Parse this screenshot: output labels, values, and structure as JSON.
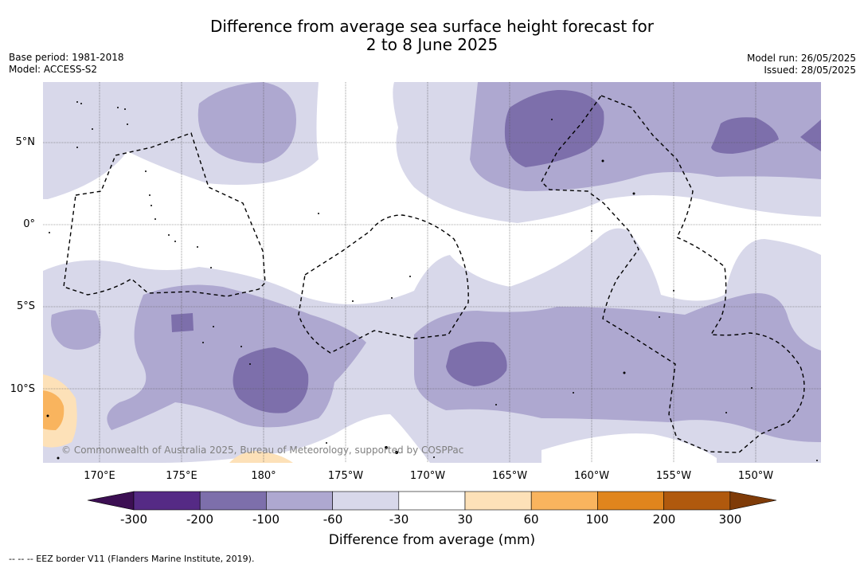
{
  "title": {
    "line1": "Difference from average sea surface height forecast for",
    "line2": "2 to 8 June 2025"
  },
  "meta": {
    "base_period": "Base period: 1981-2018",
    "model": "Model: ACCESS-S2",
    "model_run": "Model run: 26/05/2025",
    "issued": "Issued: 28/05/2025"
  },
  "map": {
    "lat_labels": [
      "5°N",
      "0°",
      "5°S",
      "10°S"
    ],
    "lon_labels": [
      "170°E",
      "175°E",
      "180°",
      "175°W",
      "170°W",
      "165°W",
      "160°W",
      "155°W",
      "150°W"
    ],
    "copyright": "© Commonwealth of Australia 2025, Bureau of Meteorology, supported by COSPPac"
  },
  "colorbar": {
    "ticks": [
      "-300",
      "-200",
      "-100",
      "-60",
      "-30",
      "30",
      "60",
      "100",
      "200",
      "300"
    ],
    "colors": [
      "#3c0f53",
      "#552a85",
      "#7d6fab",
      "#aea8d0",
      "#d8d8ea",
      "#ffffff",
      "#fde1b8",
      "#f9b45e",
      "#e0851d",
      "#b0590d",
      "#7f3b08"
    ],
    "label": "Difference from average (mm)"
  },
  "footnote": "--  --  -- EEZ border V11 (Flanders Marine Institute, 2019)."
}
